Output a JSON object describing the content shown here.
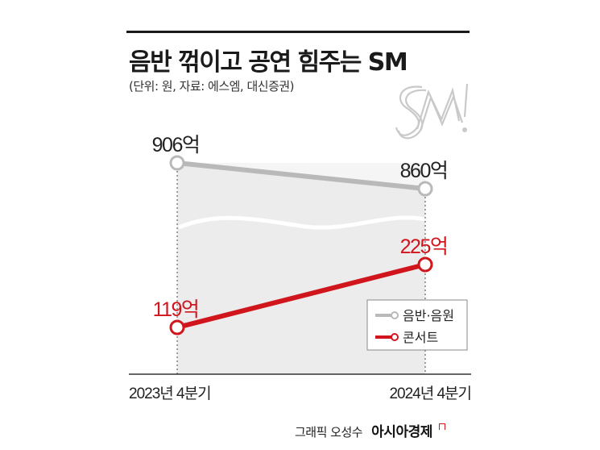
{
  "header": {
    "title": "음반 꺾이고 공연 힘주는 SM",
    "subtitle": "(단위: 원, 자료: 에스엠, 대신증권)"
  },
  "chart_data": {
    "type": "line",
    "categories": [
      "2023년 4분기",
      "2024년 4분기"
    ],
    "unit": "억",
    "series": [
      {
        "name": "음반·음원",
        "values": [
          906,
          860
        ],
        "labels": [
          "906억",
          "860억"
        ],
        "color": "#b9b9b9"
      },
      {
        "name": "콘서트",
        "values": [
          119,
          225
        ],
        "labels": [
          "119억",
          "225억"
        ],
        "color": "#d0161c"
      }
    ],
    "legend_position": "bottom-right",
    "y_scale": "broken"
  },
  "colors": {
    "accent": "#d0161c",
    "gray_line": "#b9b9b9",
    "area_fill": "#efefef",
    "text": "#222222"
  },
  "logo": {
    "icon": "sm-entertainment-logo",
    "text": "SM"
  },
  "credit": {
    "by": "그래픽 오성수",
    "brand": "아시아경제"
  }
}
